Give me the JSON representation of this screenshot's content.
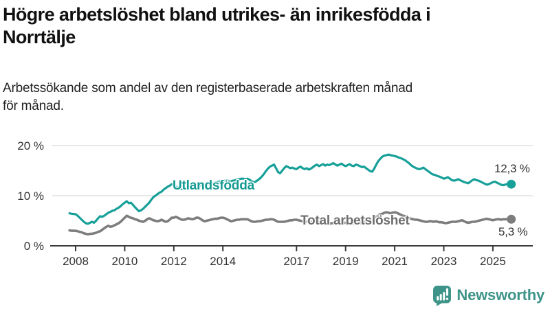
{
  "header": {
    "title_lines": [
      "Högre arbetslöshet bland utrikes- än inrikesfödda i",
      "Norrtälje"
    ],
    "subtitle_lines": [
      "Arbetssökande som andel av den registerbaserade arbetskraften månad",
      "för månad."
    ]
  },
  "footer": {
    "brand": "Newsworthy",
    "logo_icon": "newsworthy-speech-bubble-bar-chart-icon",
    "brand_color": "#3f948a"
  },
  "chart_data": {
    "type": "line",
    "title": "Högre arbetslöshet bland utrikes- än inrikesfödda i Norrtälje",
    "subtitle": "Arbetssökande som andel av den registerbaserade arbetskraften månad för månad.",
    "unit": "%",
    "frequency": "monthly",
    "x_start": 2007.75,
    "x_step": 0.0833333,
    "grid": true,
    "legend": "inline-labels",
    "x_axis": {
      "tick_values": [
        2008,
        2010,
        2012,
        2014,
        2017,
        2019,
        2021,
        2023,
        2025
      ],
      "tick_labels": [
        "2008",
        "2010",
        "2012",
        "2014",
        "2017",
        "2019",
        "2021",
        "2023",
        "2025"
      ],
      "range": [
        2007.0,
        2026.6
      ]
    },
    "y_axis": {
      "tick_values": [
        0,
        10,
        20
      ],
      "tick_labels": [
        "0 %",
        "10 %",
        "20 %"
      ],
      "range": [
        0,
        20
      ]
    },
    "colors": {
      "grid": "#dadada",
      "axis": "#3a3a3a",
      "tick_text": "#333333"
    },
    "series": [
      {
        "name": "Utlandsfödda",
        "color": "#16a098",
        "label_color": "#149a92",
        "end_label": "12,3 %",
        "last_value": 12.3,
        "values": [
          6.5,
          6.4,
          6.35,
          6.3,
          6.0,
          5.6,
          5.2,
          4.8,
          4.5,
          4.4,
          4.6,
          4.8,
          4.6,
          5.0,
          5.5,
          5.9,
          5.8,
          6.0,
          6.3,
          6.6,
          6.8,
          7.0,
          7.1,
          7.4,
          7.6,
          7.9,
          8.3,
          8.6,
          8.9,
          8.5,
          8.6,
          8.2,
          7.7,
          7.3,
          6.9,
          7.1,
          7.4,
          7.8,
          8.2,
          8.6,
          9.2,
          9.7,
          10.0,
          10.3,
          10.6,
          10.8,
          11.2,
          11.5,
          11.8,
          12.0,
          12.3,
          12.1,
          11.8,
          11.6,
          11.4,
          11.3,
          11.4,
          11.6,
          11.8,
          11.9,
          12.0,
          12.1,
          12.2,
          12.2,
          12.1,
          12.0,
          12.1,
          12.2,
          12.3,
          12.4,
          12.5,
          12.6,
          12.7,
          12.8,
          12.9,
          12.9,
          13.0,
          13.1,
          13.0,
          12.9,
          13.0,
          13.1,
          13.2,
          13.3,
          13.4,
          13.4,
          13.3,
          13.4,
          13.2,
          12.9,
          12.7,
          12.8,
          13.1,
          13.4,
          13.8,
          14.3,
          14.9,
          15.4,
          15.8,
          16.0,
          16.2,
          15.5,
          14.7,
          14.5,
          15.0,
          15.5,
          15.9,
          15.7,
          15.5,
          15.6,
          15.4,
          15.3,
          15.6,
          15.8,
          15.5,
          15.3,
          15.5,
          15.2,
          15.4,
          15.7,
          16.0,
          16.2,
          15.9,
          16.1,
          16.3,
          16.0,
          16.2,
          16.1,
          16.3,
          16.5,
          16.2,
          16.0,
          16.2,
          16.4,
          16.1,
          15.9,
          16.1,
          16.3,
          16.0,
          15.9,
          16.2,
          16.1,
          15.9,
          15.7,
          15.8,
          15.5,
          15.2,
          14.9,
          14.8,
          15.4,
          16.2,
          16.9,
          17.4,
          17.8,
          18.0,
          18.1,
          18.2,
          18.1,
          18.0,
          17.9,
          17.8,
          17.6,
          17.5,
          17.3,
          17.1,
          16.8,
          16.5,
          16.1,
          15.8,
          15.6,
          15.4,
          15.3,
          15.4,
          15.6,
          15.3,
          15.0,
          14.7,
          14.4,
          14.2,
          14.1,
          13.9,
          13.8,
          13.6,
          13.4,
          13.5,
          13.7,
          13.4,
          13.1,
          13.0,
          13.1,
          13.3,
          13.1,
          12.9,
          12.7,
          12.6,
          12.5,
          12.8,
          13.1,
          13.3,
          13.1,
          13.0,
          12.8,
          12.6,
          12.4,
          12.2,
          12.3,
          12.5,
          12.7,
          12.8,
          12.6,
          12.4,
          12.2,
          12.1,
          12.2,
          12.3,
          12.3,
          12.3
        ]
      },
      {
        "name": "Total arbetslöshet",
        "color": "#7d7d7d",
        "label_color": "#6e6e6e",
        "end_label": "5,3 %",
        "last_value": 5.3,
        "values": [
          3.1,
          3.0,
          3.0,
          3.0,
          2.9,
          2.8,
          2.7,
          2.5,
          2.4,
          2.3,
          2.4,
          2.4,
          2.5,
          2.6,
          2.8,
          2.9,
          3.2,
          3.5,
          3.8,
          4.0,
          3.8,
          3.9,
          4.1,
          4.3,
          4.5,
          4.8,
          5.2,
          5.6,
          6.0,
          5.8,
          5.6,
          5.5,
          5.3,
          5.2,
          5.0,
          4.9,
          4.8,
          5.0,
          5.3,
          5.5,
          5.3,
          5.1,
          5.0,
          4.9,
          5.0,
          5.2,
          5.0,
          4.8,
          4.9,
          5.2,
          5.6,
          5.6,
          5.8,
          5.6,
          5.4,
          5.2,
          5.2,
          5.3,
          5.5,
          5.4,
          5.3,
          5.4,
          5.6,
          5.6,
          5.4,
          5.1,
          4.9,
          5.0,
          5.1,
          5.2,
          5.3,
          5.4,
          5.4,
          5.5,
          5.6,
          5.6,
          5.5,
          5.3,
          5.1,
          4.9,
          5.0,
          5.1,
          5.2,
          5.2,
          5.3,
          5.3,
          5.3,
          5.3,
          5.1,
          4.9,
          4.8,
          4.8,
          4.9,
          4.9,
          5.0,
          5.1,
          5.2,
          5.2,
          5.3,
          5.3,
          5.2,
          5.0,
          4.8,
          4.8,
          4.8,
          4.8,
          4.9,
          5.0,
          5.1,
          5.1,
          5.2,
          5.2,
          5.1,
          5.0,
          4.9,
          4.8,
          4.8,
          4.9,
          4.8,
          4.7,
          4.7,
          4.8,
          4.8,
          4.7,
          4.6,
          4.5,
          4.4,
          4.4,
          4.5,
          4.5,
          4.4,
          4.4,
          4.5,
          4.6,
          4.6,
          4.6,
          4.5,
          4.5,
          4.4,
          4.5,
          4.6,
          4.6,
          4.5,
          4.6,
          4.7,
          4.8,
          4.8,
          4.9,
          5.0,
          5.4,
          5.8,
          6.1,
          6.3,
          6.4,
          6.6,
          6.7,
          6.6,
          6.5,
          6.6,
          6.7,
          6.6,
          6.4,
          6.2,
          6.0,
          5.9,
          5.8,
          5.6,
          5.4,
          5.3,
          5.2,
          5.2,
          5.1,
          5.0,
          4.9,
          4.8,
          4.8,
          4.9,
          4.9,
          4.8,
          4.9,
          4.8,
          4.7,
          4.7,
          4.6,
          4.5,
          4.6,
          4.7,
          4.8,
          4.8,
          4.8,
          4.9,
          5.0,
          5.1,
          4.9,
          4.7,
          4.6,
          4.7,
          4.8,
          4.8,
          4.9,
          5.0,
          5.1,
          5.2,
          5.3,
          5.4,
          5.3,
          5.2,
          5.1,
          5.2,
          5.3,
          5.3,
          5.2,
          5.3,
          5.3,
          5.3,
          5.3,
          5.3
        ]
      }
    ]
  }
}
